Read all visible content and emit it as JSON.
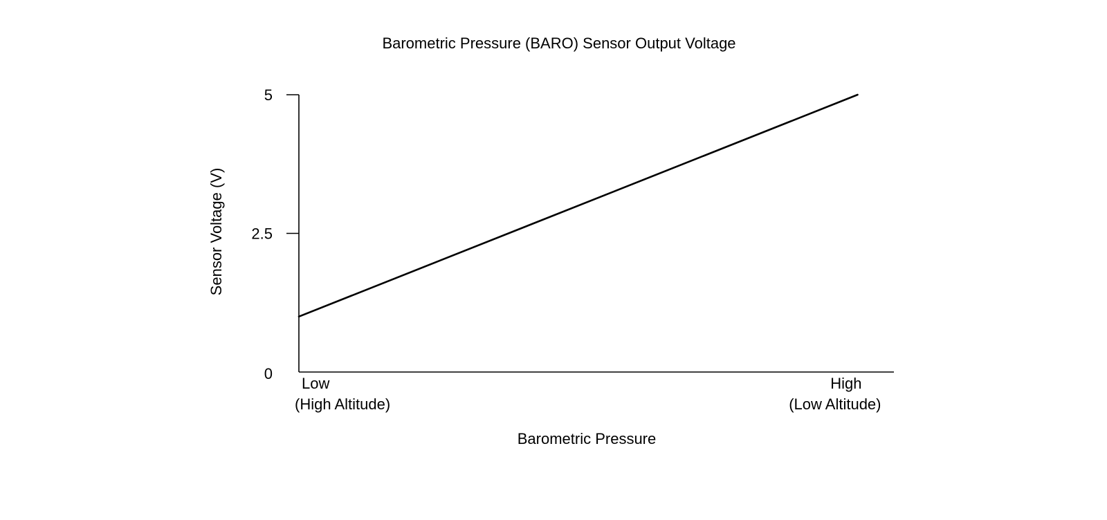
{
  "chart_data": {
    "type": "line",
    "title": "Barometric Pressure (BARO) Sensor Output Voltage",
    "xlabel": "Barometric Pressure",
    "ylabel": "Sensor Voltage (V)",
    "x_tick_labels": [
      {
        "x": 0,
        "lines": [
          "Low",
          "(High Altitude)"
        ],
        "align": "left"
      },
      {
        "x": 1,
        "lines": [
          "High",
          "(Low Altitude)"
        ],
        "align": "right"
      }
    ],
    "y_ticks": [
      {
        "value": 0,
        "label": "0"
      },
      {
        "value": 2.5,
        "label": "2.5"
      },
      {
        "value": 5,
        "label": "5"
      }
    ],
    "ylim": [
      0,
      5
    ],
    "xlim": [
      0,
      1.065
    ],
    "grid": false,
    "series": [
      {
        "x": [
          0,
          1
        ],
        "y": [
          1.0,
          5.0
        ]
      }
    ],
    "colors": {
      "line": "#000000",
      "axis": "#000000"
    }
  }
}
